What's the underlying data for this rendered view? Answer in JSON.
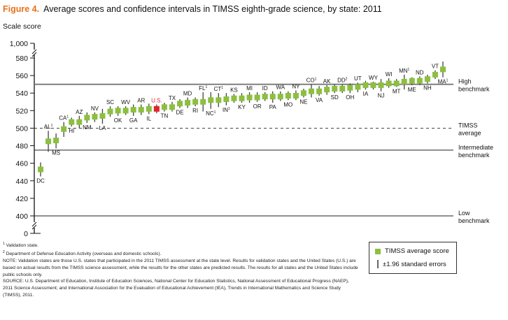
{
  "figure": {
    "label": "Figure 4.",
    "title": "Average scores and confidence intervals in TIMSS eighth-grade science, by state: 2011"
  },
  "legend": {
    "marker_label": "TIMSS average score",
    "errorbar_label": "±1.96 standard errors"
  },
  "notes": {
    "footnote1": "Validation state.",
    "footnote2": "Department of Defense Education Activity (overseas and domestic schools).",
    "note": "NOTE: Validation states are those U.S. states that participated in the 2011 TIMSS assessment at the state level. Results for validation states and the United States (U.S.) are based on actual results from the TIMSS science assessment, while the results for the other states are predicted results. The results for all states and the United States include public schools only.",
    "source": "SOURCE: U.S. Department of Education, Institute of Education Sciences, National Center for Education Statistics, National Assessment of Educational Progress (NAEP), 2011 Science Assessment; and International Association for the Evaluation of Educational Achievement (IEA), Trends in International Mathematics and Science Study (TIMSS), 2011."
  },
  "colors": {
    "marker": "#8cbf3f",
    "us_marker": "#e0262b",
    "us_label": "#e0262b",
    "title_accent": "#e8711a",
    "errorbar": "#444444",
    "benchmark_line": "#777777"
  },
  "chart_data": {
    "type": "scatter",
    "title": "Average scores and confidence intervals in TIMSS eighth-grade science, by state: 2011",
    "xlabel": "",
    "ylabel": "Scale score",
    "ylim": [
      400,
      580
    ],
    "y_break": true,
    "yticks": [
      0,
      400,
      420,
      440,
      460,
      480,
      500,
      520,
      540,
      560,
      580,
      1000
    ],
    "ytick_labels": [
      "0",
      "400",
      "420",
      "440",
      "460",
      "480",
      "500",
      "520",
      "540",
      "560",
      "580",
      "1,000"
    ],
    "reference_lines": [
      {
        "name": "High benchmark",
        "value": 550,
        "style": "solid"
      },
      {
        "name": "TIMSS average",
        "value": 500,
        "style": "dashed"
      },
      {
        "name": "Intermediate benchmark",
        "value": 475,
        "style": "solid"
      },
      {
        "name": "Low benchmark",
        "value": 400,
        "style": "solid"
      }
    ],
    "points": [
      {
        "label": "DC",
        "sup": "",
        "value": 453,
        "low": 445,
        "high": 461,
        "pos": "below"
      },
      {
        "label": "AL",
        "sup": "1",
        "value": 485,
        "low": 473,
        "high": 497,
        "pos": "above"
      },
      {
        "label": "MS",
        "sup": "",
        "value": 486,
        "low": 477,
        "high": 494,
        "pos": "below"
      },
      {
        "label": "CA",
        "sup": "1",
        "value": 499,
        "low": 490,
        "high": 507,
        "pos": "above"
      },
      {
        "label": "HI",
        "sup": "",
        "value": 507,
        "low": 502,
        "high": 512,
        "pos": "below"
      },
      {
        "label": "AZ",
        "sup": "",
        "value": 507,
        "low": 500,
        "high": 514,
        "pos": "above"
      },
      {
        "label": "NM",
        "sup": "",
        "value": 512,
        "low": 506,
        "high": 518,
        "pos": "below"
      },
      {
        "label": "NV",
        "sup": "",
        "value": 513,
        "low": 507,
        "high": 518,
        "pos": "above"
      },
      {
        "label": "LA",
        "sup": "",
        "value": 514,
        "low": 505,
        "high": 522,
        "pos": "below"
      },
      {
        "label": "SC",
        "sup": "",
        "value": 519,
        "low": 513,
        "high": 525,
        "pos": "above"
      },
      {
        "label": "OK",
        "sup": "",
        "value": 520,
        "low": 514,
        "high": 525,
        "pos": "below"
      },
      {
        "label": "WV",
        "sup": "",
        "value": 520,
        "low": 515,
        "high": 525,
        "pos": "above"
      },
      {
        "label": "GA",
        "sup": "",
        "value": 521,
        "low": 514,
        "high": 527,
        "pos": "below"
      },
      {
        "label": "AR",
        "sup": "",
        "value": 521,
        "low": 515,
        "high": 527,
        "pos": "above"
      },
      {
        "label": "IL",
        "sup": "",
        "value": 522,
        "low": 516,
        "high": 528,
        "pos": "below"
      },
      {
        "label": "U.S.",
        "sup": "",
        "value": 522,
        "low": 517,
        "high": 527,
        "pos": "above",
        "highlight": true
      },
      {
        "label": "TN",
        "sup": "",
        "value": 524,
        "low": 519,
        "high": 529,
        "pos": "below"
      },
      {
        "label": "TX",
        "sup": "",
        "value": 524,
        "low": 519,
        "high": 530,
        "pos": "above"
      },
      {
        "label": "DE",
        "sup": "",
        "value": 528,
        "low": 523,
        "high": 533,
        "pos": "below"
      },
      {
        "label": "MD",
        "sup": "",
        "value": 529,
        "low": 523,
        "high": 535,
        "pos": "above"
      },
      {
        "label": "RI",
        "sup": "",
        "value": 530,
        "low": 525,
        "high": 535,
        "pos": "below"
      },
      {
        "label": "FL",
        "sup": "1",
        "value": 530,
        "low": 519,
        "high": 541,
        "pos": "above"
      },
      {
        "label": "NC",
        "sup": "1",
        "value": 532,
        "low": 522,
        "high": 541,
        "pos": "below"
      },
      {
        "label": "CT",
        "sup": "1",
        "value": 532,
        "low": 524,
        "high": 540,
        "pos": "above"
      },
      {
        "label": "IN",
        "sup": "1",
        "value": 533,
        "low": 526,
        "high": 540,
        "pos": "below"
      },
      {
        "label": "KS",
        "sup": "",
        "value": 534,
        "low": 529,
        "high": 539,
        "pos": "above"
      },
      {
        "label": "KY",
        "sup": "",
        "value": 534,
        "low": 529,
        "high": 540,
        "pos": "below"
      },
      {
        "label": "MI",
        "sup": "",
        "value": 535,
        "low": 529,
        "high": 541,
        "pos": "above"
      },
      {
        "label": "OR",
        "sup": "",
        "value": 535,
        "low": 530,
        "high": 541,
        "pos": "below"
      },
      {
        "label": "ID",
        "sup": "",
        "value": 536,
        "low": 531,
        "high": 541,
        "pos": "above"
      },
      {
        "label": "PA",
        "sup": "",
        "value": 536,
        "low": 529,
        "high": 542,
        "pos": "below"
      },
      {
        "label": "WA",
        "sup": "",
        "value": 536,
        "low": 531,
        "high": 542,
        "pos": "above"
      },
      {
        "label": "MO",
        "sup": "",
        "value": 537,
        "low": 532,
        "high": 542,
        "pos": "below"
      },
      {
        "label": "NY",
        "sup": "",
        "value": 537,
        "low": 532,
        "high": 543,
        "pos": "above"
      },
      {
        "label": "NE",
        "sup": "",
        "value": 540,
        "low": 535,
        "high": 545,
        "pos": "below"
      },
      {
        "label": "CO",
        "sup": "1",
        "value": 542,
        "low": 535,
        "high": 550,
        "pos": "above"
      },
      {
        "label": "VA",
        "sup": "",
        "value": 542,
        "low": 537,
        "high": 548,
        "pos": "below"
      },
      {
        "label": "AK",
        "sup": "",
        "value": 544,
        "low": 538,
        "high": 549,
        "pos": "above"
      },
      {
        "label": "SD",
        "sup": "",
        "value": 545,
        "low": 540,
        "high": 550,
        "pos": "below"
      },
      {
        "label": "DD",
        "sup": "2",
        "value": 545,
        "low": 540,
        "high": 550,
        "pos": "above"
      },
      {
        "label": "OH",
        "sup": "",
        "value": 546,
        "low": 540,
        "high": 551,
        "pos": "below"
      },
      {
        "label": "UT",
        "sup": "",
        "value": 547,
        "low": 541,
        "high": 552,
        "pos": "above"
      },
      {
        "label": "IA",
        "sup": "",
        "value": 549,
        "low": 544,
        "high": 554,
        "pos": "below"
      },
      {
        "label": "WY",
        "sup": "",
        "value": 549,
        "low": 544,
        "high": 553,
        "pos": "above"
      },
      {
        "label": "NJ",
        "sup": "",
        "value": 549,
        "low": 542,
        "high": 556,
        "pos": "below"
      },
      {
        "label": "WI",
        "sup": "",
        "value": 551,
        "low": 546,
        "high": 557,
        "pos": "above"
      },
      {
        "label": "MT",
        "sup": "",
        "value": 551,
        "low": 547,
        "high": 556,
        "pos": "below"
      },
      {
        "label": "MN",
        "sup": "1",
        "value": 553,
        "low": 544,
        "high": 561,
        "pos": "above"
      },
      {
        "label": "ME",
        "sup": "",
        "value": 554,
        "low": 549,
        "high": 558,
        "pos": "below"
      },
      {
        "label": "ND",
        "sup": "",
        "value": 554,
        "low": 549,
        "high": 559,
        "pos": "above"
      },
      {
        "label": "NH",
        "sup": "",
        "value": 556,
        "low": 551,
        "high": 561,
        "pos": "below"
      },
      {
        "label": "VT",
        "sup": "",
        "value": 561,
        "low": 556,
        "high": 566,
        "pos": "above"
      },
      {
        "label": "MA",
        "sup": "1",
        "value": 567,
        "low": 558,
        "high": 576,
        "pos": "below"
      }
    ]
  }
}
